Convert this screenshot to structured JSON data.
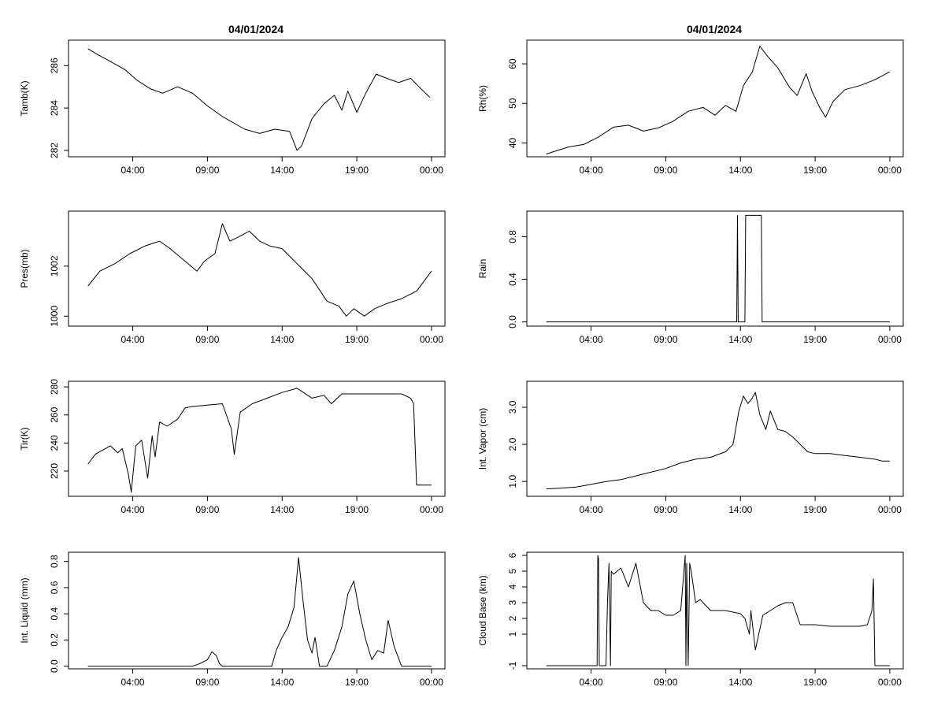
{
  "figure": {
    "titles": [
      "04/01/2024",
      "04/01/2024"
    ]
  },
  "chart_data": [
    {
      "type": "line",
      "title": "04/01/2024",
      "ylabel": "Tamb(K)",
      "xlabel": "",
      "x_ticks": [
        "04:00",
        "09:00",
        "14:00",
        "19:00",
        "00:00"
      ],
      "x_tick_hours": [
        4,
        9,
        14,
        19,
        24
      ],
      "xlim": [
        -0.3,
        24.9
      ],
      "ylim": [
        281.7,
        287.2
      ],
      "y_ticks": [
        282,
        284,
        286
      ],
      "series": [
        {
          "name": "Tamb(K)",
          "x": [
            1,
            1.7,
            2.5,
            3.5,
            4.3,
            5.2,
            6,
            7,
            8,
            9,
            10,
            11.5,
            12.5,
            13.5,
            14.5,
            15,
            15.3,
            16,
            16.8,
            17.5,
            18,
            18.4,
            19,
            19.6,
            20.3,
            21,
            21.8,
            22.6,
            23.3,
            23.9
          ],
          "y": [
            286.8,
            286.5,
            286.2,
            285.8,
            285.3,
            284.9,
            284.7,
            285.0,
            284.7,
            284.1,
            283.6,
            283.0,
            282.8,
            283.0,
            282.9,
            282.0,
            282.2,
            283.5,
            284.2,
            284.6,
            283.9,
            284.8,
            283.8,
            284.7,
            285.6,
            285.4,
            285.2,
            285.4,
            284.9,
            284.5
          ]
        }
      ]
    },
    {
      "type": "line",
      "title": "04/01/2024",
      "ylabel": "Rh(%)",
      "xlabel": "",
      "x_ticks": [
        "04:00",
        "09:00",
        "14:00",
        "19:00",
        "00:00"
      ],
      "x_tick_hours": [
        4,
        9,
        14,
        19,
        24
      ],
      "xlim": [
        -0.3,
        24.9
      ],
      "ylim": [
        36.5,
        66
      ],
      "y_ticks": [
        40,
        50,
        60
      ],
      "series": [
        {
          "name": "Rh(%)",
          "x": [
            1,
            1.5,
            2.5,
            3.5,
            4.5,
            5.5,
            6.5,
            7.5,
            8.5,
            9.5,
            10.5,
            11.5,
            12.3,
            13,
            13.7,
            14.2,
            14.8,
            15.3,
            15.8,
            16.5,
            17.3,
            17.8,
            18.4,
            18.8,
            19.3,
            19.7,
            20.2,
            21,
            22,
            23,
            24
          ],
          "y": [
            37.2,
            37.8,
            39.0,
            39.6,
            41.5,
            44.0,
            44.5,
            43.0,
            43.8,
            45.5,
            48.0,
            49.0,
            47.0,
            49.5,
            48.0,
            54.5,
            58.0,
            64.5,
            62.0,
            59.0,
            54.0,
            52.0,
            57.5,
            53.0,
            49.0,
            46.5,
            50.5,
            53.5,
            54.5,
            56.0,
            58.0
          ]
        }
      ]
    },
    {
      "type": "line",
      "title": "",
      "ylabel": "Pres(mb)",
      "xlabel": "",
      "x_ticks": [
        "04:00",
        "09:00",
        "14:00",
        "19:00",
        "00:00"
      ],
      "x_tick_hours": [
        4,
        9,
        14,
        19,
        24
      ],
      "xlim": [
        -0.3,
        24.9
      ],
      "ylim": [
        999.6,
        1004.2
      ],
      "y_ticks": [
        1000,
        1002
      ],
      "y_tick_labels": [
        "1000",
        "1002"
      ],
      "series": [
        {
          "name": "Pres(mb)",
          "x": [
            1,
            1.8,
            2.8,
            3.8,
            4.8,
            5.8,
            6.5,
            7.5,
            8.3,
            8.8,
            9.5,
            10,
            10.5,
            11.2,
            11.8,
            12.5,
            13.2,
            14,
            15,
            16,
            17,
            17.8,
            18.3,
            18.8,
            19.5,
            20.2,
            21,
            22,
            23,
            24
          ],
          "y": [
            1001.2,
            1001.8,
            1002.1,
            1002.5,
            1002.8,
            1003.0,
            1002.7,
            1002.2,
            1001.8,
            1002.2,
            1002.5,
            1003.7,
            1003.0,
            1003.2,
            1003.4,
            1003.0,
            1002.8,
            1002.7,
            1002.1,
            1001.5,
            1000.6,
            1000.4,
            1000.0,
            1000.3,
            1000.0,
            1000.3,
            1000.5,
            1000.7,
            1001.0,
            1001.8
          ]
        }
      ]
    },
    {
      "type": "line",
      "title": "",
      "ylabel": "Rain",
      "xlabel": "",
      "x_ticks": [
        "04:00",
        "09:00",
        "14:00",
        "19:00",
        "00:00"
      ],
      "x_tick_hours": [
        4,
        9,
        14,
        19,
        24
      ],
      "xlim": [
        -0.3,
        24.9
      ],
      "ylim": [
        -0.04,
        1.04
      ],
      "y_ticks": [
        0.0,
        0.4,
        0.8
      ],
      "y_tick_labels": [
        "0.0",
        "0.4",
        "0.8"
      ],
      "series": [
        {
          "name": "Rain",
          "x": [
            1,
            13.75,
            13.8,
            13.85,
            13.9,
            14.3,
            14.35,
            14.4,
            15.4,
            15.45,
            24
          ],
          "y": [
            0,
            0,
            1,
            0,
            0,
            0,
            1,
            1,
            1,
            0,
            0
          ]
        }
      ]
    },
    {
      "type": "line",
      "title": "",
      "ylabel": "Tir(K)",
      "xlabel": "",
      "x_ticks": [
        "04:00",
        "09:00",
        "14:00",
        "19:00",
        "00:00"
      ],
      "x_tick_hours": [
        4,
        9,
        14,
        19,
        24
      ],
      "xlim": [
        -0.3,
        24.9
      ],
      "ylim": [
        202,
        284
      ],
      "y_ticks": [
        220,
        240,
        260,
        280
      ],
      "series": [
        {
          "name": "Tir(K)",
          "x": [
            1,
            1.5,
            2.5,
            3,
            3.3,
            3.7,
            3.9,
            4.2,
            4.6,
            5,
            5.3,
            5.5,
            5.8,
            6.3,
            7,
            7.5,
            8,
            9,
            10,
            10.6,
            10.8,
            11.2,
            12,
            13,
            14,
            15,
            16,
            16.8,
            17.3,
            18,
            19,
            20,
            21,
            22,
            22.6,
            22.8,
            23,
            23.5,
            24
          ],
          "y": [
            225,
            232,
            238,
            233,
            236,
            218,
            205,
            238,
            242,
            215,
            245,
            230,
            255,
            252,
            257,
            265,
            266,
            267,
            268,
            250,
            232,
            262,
            268,
            272,
            276,
            279,
            272,
            274,
            268,
            275,
            275,
            275,
            275,
            275,
            272,
            268,
            210,
            210,
            210
          ]
        }
      ]
    },
    {
      "type": "line",
      "title": "",
      "ylabel": "Int. Vapor (cm)",
      "xlabel": "",
      "x_ticks": [
        "04:00",
        "09:00",
        "14:00",
        "19:00",
        "00:00"
      ],
      "x_tick_hours": [
        4,
        9,
        14,
        19,
        24
      ],
      "xlim": [
        -0.3,
        24.9
      ],
      "ylim": [
        0.6,
        3.7
      ],
      "y_ticks": [
        1.0,
        2.0,
        3.0
      ],
      "y_tick_labels": [
        "1.0",
        "2.0",
        "3.0"
      ],
      "series": [
        {
          "name": "Int. Vapor (cm)",
          "x": [
            1,
            2,
            3,
            4,
            5,
            6,
            7,
            8,
            9,
            10,
            11,
            12,
            13,
            13.5,
            13.9,
            14.2,
            14.5,
            14.8,
            15,
            15.3,
            15.7,
            16,
            16.5,
            17,
            17.5,
            18,
            18.5,
            19,
            20,
            21,
            22,
            23,
            23.5,
            24
          ],
          "y": [
            0.8,
            0.82,
            0.85,
            0.92,
            1.0,
            1.05,
            1.15,
            1.25,
            1.35,
            1.5,
            1.6,
            1.65,
            1.8,
            2.0,
            2.9,
            3.3,
            3.1,
            3.25,
            3.4,
            2.8,
            2.4,
            2.9,
            2.4,
            2.35,
            2.2,
            2.0,
            1.8,
            1.75,
            1.75,
            1.7,
            1.65,
            1.6,
            1.55,
            1.55
          ]
        }
      ]
    },
    {
      "type": "line",
      "title": "",
      "ylabel": "Int. Liquid (mm)",
      "xlabel": "",
      "x_ticks": [
        "04:00",
        "09:00",
        "14:00",
        "19:00",
        "00:00"
      ],
      "x_tick_hours": [
        4,
        9,
        14,
        19,
        24
      ],
      "xlim": [
        -0.3,
        24.9
      ],
      "ylim": [
        -0.02,
        0.87
      ],
      "y_ticks": [
        0.0,
        0.2,
        0.4,
        0.6,
        0.8
      ],
      "y_tick_labels": [
        "0.0",
        "0.2",
        "0.4",
        "0.6",
        "0.8"
      ],
      "series": [
        {
          "name": "Int. Liquid (mm)",
          "x": [
            1,
            8,
            8.5,
            9,
            9.3,
            9.6,
            9.8,
            10,
            12,
            13.3,
            13.6,
            14,
            14.4,
            14.8,
            15.1,
            15.4,
            15.7,
            16,
            16.2,
            16.5,
            17,
            17.5,
            18,
            18.4,
            18.8,
            19.2,
            19.6,
            20,
            20.4,
            20.8,
            21.1,
            21.5,
            22,
            24
          ],
          "y": [
            0,
            0,
            0.02,
            0.05,
            0.11,
            0.08,
            0.02,
            0,
            0,
            0,
            0.12,
            0.22,
            0.3,
            0.45,
            0.83,
            0.5,
            0.2,
            0.1,
            0.22,
            0.0,
            0.0,
            0.12,
            0.3,
            0.55,
            0.65,
            0.4,
            0.2,
            0.05,
            0.12,
            0.1,
            0.35,
            0.15,
            0.0,
            0.0
          ]
        }
      ]
    },
    {
      "type": "line",
      "title": "",
      "ylabel": "Cloud Base (km)",
      "xlabel": "",
      "x_ticks": [
        "04:00",
        "09:00",
        "14:00",
        "19:00",
        "00:00"
      ],
      "x_tick_hours": [
        4,
        9,
        14,
        19,
        24
      ],
      "xlim": [
        -0.3,
        24.9
      ],
      "ylim": [
        -1.2,
        6.2
      ],
      "y_ticks": [
        -1,
        1,
        2,
        3,
        4,
        5,
        6
      ],
      "y_tick_labels": [
        "-1",
        "1",
        "2",
        "3",
        "4",
        "5",
        "6"
      ],
      "series": [
        {
          "name": "Cloud Base (km)",
          "x": [
            1,
            4.4,
            4.45,
            4.5,
            4.55,
            4.6,
            5,
            5.1,
            5.2,
            5.3,
            5.35,
            5.5,
            6,
            6.5,
            7,
            7.5,
            8,
            8.5,
            9,
            9.5,
            10,
            10.3,
            10.35,
            10.4,
            10.5,
            10.6,
            10.7,
            11,
            11.3,
            12,
            13,
            14,
            14.3,
            14.6,
            14.7,
            15,
            15.5,
            16,
            16.5,
            17,
            17.5,
            18,
            19,
            20,
            21,
            22,
            22.5,
            22.8,
            22.9,
            23,
            23.5,
            24
          ],
          "y": [
            -1,
            -1,
            6,
            5.8,
            -1,
            -1,
            -1,
            3,
            5.5,
            -1,
            5.0,
            4.8,
            5.2,
            4.0,
            5.5,
            3.0,
            2.5,
            2.5,
            2.2,
            2.2,
            2.5,
            6.0,
            -1,
            5.5,
            -1,
            5.5,
            5.0,
            3.0,
            3.2,
            2.5,
            2.5,
            2.3,
            2.0,
            1.0,
            2.5,
            0.0,
            2.2,
            2.5,
            2.8,
            3.0,
            3.0,
            1.6,
            1.6,
            1.5,
            1.5,
            1.5,
            1.6,
            2.5,
            4.5,
            -1,
            -1,
            -1
          ]
        }
      ]
    }
  ]
}
